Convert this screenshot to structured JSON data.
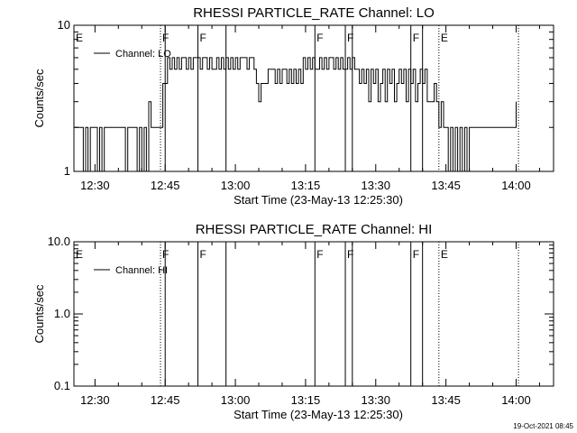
{
  "chart_data": [
    {
      "type": "line",
      "title": "RHESSI PARTICLE_RATE Channel: LO",
      "xlabel": "Start Time (23-May-13 12:25:30)",
      "ylabel": "Counts/sec",
      "yscale": "log",
      "xlim": [
        "12:25:30",
        "14:08:00"
      ],
      "ylim": [
        1,
        10
      ],
      "x_ticks": [
        "12:30",
        "12:45",
        "13:00",
        "13:15",
        "13:30",
        "13:45",
        "14:00"
      ],
      "y_ticks": [
        "1",
        "10"
      ],
      "legend": {
        "entries": [
          "Channel: LO"
        ],
        "position": "top-left"
      },
      "series": [
        {
          "name": "Channel: LO",
          "points": [
            [
              "12:25:30",
              2
            ],
            [
              "12:27:00",
              2
            ],
            [
              "12:27:30",
              1
            ],
            [
              "12:28:00",
              2
            ],
            [
              "12:28:30",
              1
            ],
            [
              "12:29:00",
              2
            ],
            [
              "12:30:00",
              2
            ],
            [
              "12:30:30",
              1
            ],
            [
              "12:31:00",
              2
            ],
            [
              "12:31:30",
              1
            ],
            [
              "12:32:00",
              2
            ],
            [
              "12:36:00",
              2
            ],
            [
              "12:36:30",
              1
            ],
            [
              "12:37:00",
              2
            ],
            [
              "12:38:30",
              2
            ],
            [
              "12:39:00",
              1
            ],
            [
              "12:39:30",
              2
            ],
            [
              "12:40:00",
              1
            ],
            [
              "12:40:30",
              2
            ],
            [
              "12:41:00",
              1
            ],
            [
              "12:41:30",
              3
            ],
            [
              "12:42:00",
              2
            ],
            [
              "12:44:00",
              2
            ],
            [
              "12:44:30",
              4
            ],
            [
              "12:45:00",
              4
            ],
            [
              "12:45:30",
              6
            ],
            [
              "12:46:00",
              5
            ],
            [
              "12:46:30",
              6
            ],
            [
              "12:47:00",
              5
            ],
            [
              "12:47:30",
              6
            ],
            [
              "12:48:00",
              5
            ],
            [
              "12:48:30",
              6
            ],
            [
              "12:49:00",
              6
            ],
            [
              "12:49:30",
              5
            ],
            [
              "12:50:00",
              6
            ],
            [
              "12:50:30",
              5
            ],
            [
              "12:51:00",
              6
            ],
            [
              "12:52:00",
              6
            ],
            [
              "12:52:30",
              5
            ],
            [
              "12:53:00",
              6
            ],
            [
              "12:54:00",
              5
            ],
            [
              "12:54:30",
              6
            ],
            [
              "12:55:00",
              5
            ],
            [
              "12:56:00",
              6
            ],
            [
              "12:56:30",
              5
            ],
            [
              "12:57:00",
              6
            ],
            [
              "12:57:30",
              5
            ],
            [
              "12:58:00",
              6
            ],
            [
              "12:58:30",
              5
            ],
            [
              "12:59:00",
              6
            ],
            [
              "12:59:30",
              5
            ],
            [
              "13:00:00",
              6
            ],
            [
              "13:00:30",
              5
            ],
            [
              "13:01:00",
              6
            ],
            [
              "13:02:00",
              6
            ],
            [
              "13:02:30",
              5
            ],
            [
              "13:03:00",
              6
            ],
            [
              "13:04:00",
              5
            ],
            [
              "13:04:30",
              4
            ],
            [
              "13:05:00",
              3
            ],
            [
              "13:05:30",
              4
            ],
            [
              "13:06:30",
              4
            ],
            [
              "13:07:00",
              5
            ],
            [
              "13:08:00",
              5
            ],
            [
              "13:08:30",
              4
            ],
            [
              "13:09:00",
              5
            ],
            [
              "13:09:30",
              4
            ],
            [
              "13:10:00",
              5
            ],
            [
              "13:11:00",
              4
            ],
            [
              "13:11:30",
              5
            ],
            [
              "13:12:00",
              4
            ],
            [
              "13:12:30",
              5
            ],
            [
              "13:13:00",
              4
            ],
            [
              "13:13:30",
              5
            ],
            [
              "13:14:00",
              4
            ],
            [
              "13:14:30",
              6
            ],
            [
              "13:15:00",
              5
            ],
            [
              "13:15:30",
              6
            ],
            [
              "13:16:00",
              5
            ],
            [
              "13:16:30",
              6
            ],
            [
              "13:17:00",
              5
            ],
            [
              "13:18:00",
              6
            ],
            [
              "13:18:30",
              5
            ],
            [
              "13:19:00",
              6
            ],
            [
              "13:19:30",
              5
            ],
            [
              "13:20:00",
              6
            ],
            [
              "13:21:00",
              5
            ],
            [
              "13:21:30",
              6
            ],
            [
              "13:22:00",
              5
            ],
            [
              "13:22:30",
              6
            ],
            [
              "13:23:00",
              5
            ],
            [
              "13:24:00",
              6
            ],
            [
              "13:24:30",
              5
            ],
            [
              "13:25:00",
              6
            ],
            [
              "13:25:30",
              5
            ],
            [
              "13:26:00",
              5
            ],
            [
              "13:26:30",
              4
            ],
            [
              "13:27:00",
              5
            ],
            [
              "13:27:30",
              4
            ],
            [
              "13:28:00",
              5
            ],
            [
              "13:28:30",
              3
            ],
            [
              "13:29:00",
              5
            ],
            [
              "13:29:30",
              4
            ],
            [
              "13:30:00",
              5
            ],
            [
              "13:30:30",
              3
            ],
            [
              "13:31:00",
              4
            ],
            [
              "13:31:30",
              5
            ],
            [
              "13:32:00",
              3
            ],
            [
              "13:32:30",
              5
            ],
            [
              "13:33:00",
              4
            ],
            [
              "13:33:30",
              5
            ],
            [
              "13:34:00",
              3
            ],
            [
              "13:34:30",
              4
            ],
            [
              "13:35:00",
              5
            ],
            [
              "13:35:30",
              4
            ],
            [
              "13:36:00",
              5
            ],
            [
              "13:36:30",
              3
            ],
            [
              "13:37:00",
              5
            ],
            [
              "13:37:30",
              4
            ],
            [
              "13:38:00",
              5
            ],
            [
              "13:38:30",
              3
            ],
            [
              "13:39:00",
              4
            ],
            [
              "13:39:30",
              5
            ],
            [
              "13:40:00",
              4
            ],
            [
              "13:40:30",
              5
            ],
            [
              "13:41:00",
              3
            ],
            [
              "13:42:00",
              3
            ],
            [
              "13:42:30",
              4
            ],
            [
              "13:43:00",
              3
            ],
            [
              "13:43:30",
              2
            ],
            [
              "13:44:00",
              3
            ],
            [
              "13:44:30",
              2
            ],
            [
              "13:45:00",
              2
            ],
            [
              "13:45:30",
              1
            ],
            [
              "13:46:00",
              2
            ],
            [
              "13:46:30",
              1
            ],
            [
              "13:47:00",
              2
            ],
            [
              "13:47:30",
              1
            ],
            [
              "13:48:00",
              2
            ],
            [
              "13:48:30",
              1
            ],
            [
              "13:49:00",
              2
            ],
            [
              "13:49:30",
              1
            ],
            [
              "13:50:00",
              2
            ],
            [
              "13:57:30",
              2
            ],
            [
              "13:58:00",
              2
            ],
            [
              "13:59:30",
              2
            ],
            [
              "14:00:00",
              3
            ]
          ]
        }
      ],
      "annotations": [
        {
          "text": "E",
          "x": "12:25:30"
        },
        {
          "text": "F",
          "x": "12:44:00"
        },
        {
          "text": "F",
          "x": "12:52:00"
        },
        {
          "text": "F",
          "x": "13:17:00"
        },
        {
          "text": "F",
          "x": "13:23:30"
        },
        {
          "text": "F",
          "x": "13:37:30"
        },
        {
          "text": "E",
          "x": "13:43:30"
        }
      ],
      "reference_lines": {
        "solid": [
          "12:45:00",
          "12:52:00",
          "12:58:00",
          "13:17:00",
          "13:23:30",
          "13:25:00",
          "13:37:30",
          "13:40:00"
        ],
        "dotted": [
          "12:44:00",
          "13:43:30",
          "14:00:30"
        ]
      }
    },
    {
      "type": "line",
      "title": "RHESSI PARTICLE_RATE Channel: HI",
      "xlabel": "Start Time (23-May-13 12:25:30)",
      "ylabel": "Counts/sec",
      "yscale": "log",
      "xlim": [
        "12:25:30",
        "14:08:00"
      ],
      "ylim": [
        0.1,
        10
      ],
      "x_ticks": [
        "12:30",
        "12:45",
        "13:00",
        "13:15",
        "13:30",
        "13:45",
        "14:00"
      ],
      "y_ticks": [
        "0.1",
        "1.0",
        "10.0"
      ],
      "legend": {
        "entries": [
          "Channel: HI"
        ],
        "position": "top-left"
      },
      "series": [
        {
          "name": "Channel: HI",
          "points": []
        }
      ],
      "annotations": [
        {
          "text": "E",
          "x": "12:25:30"
        },
        {
          "text": "F",
          "x": "12:44:00"
        },
        {
          "text": "F",
          "x": "12:52:00"
        },
        {
          "text": "F",
          "x": "13:17:00"
        },
        {
          "text": "F",
          "x": "13:23:30"
        },
        {
          "text": "F",
          "x": "13:37:30"
        },
        {
          "text": "E",
          "x": "13:43:30"
        }
      ],
      "reference_lines": {
        "solid": [
          "12:45:00",
          "12:52:00",
          "12:58:00",
          "13:17:00",
          "13:23:30",
          "13:25:00",
          "13:37:30",
          "13:40:00"
        ],
        "dotted": [
          "12:44:00",
          "13:43:30",
          "14:00:30"
        ]
      }
    }
  ],
  "footer": {
    "timestamp": "19-Oct-2021 08:45"
  }
}
